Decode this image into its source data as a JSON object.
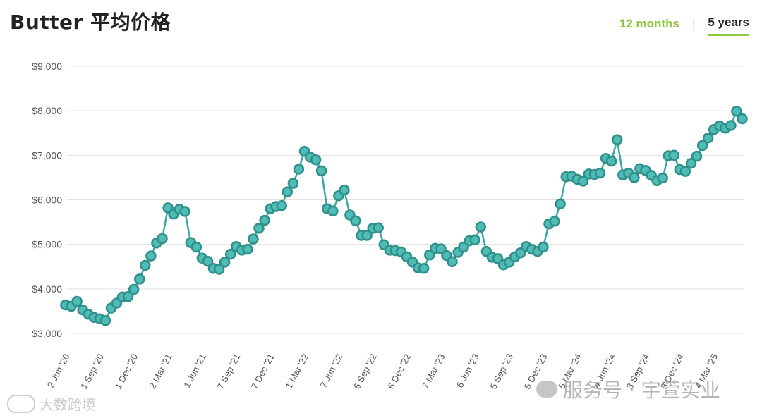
{
  "header": {
    "title": "Butter 平均价格",
    "tab_12_months": "12 months",
    "tab_5_years": "5 years"
  },
  "colors": {
    "line": "#3aa9a4",
    "marker": "#4fbcb5",
    "marker_stroke": "#2f8f8a",
    "accent": "#8dc63f",
    "grid": "#e3e3e3"
  },
  "watermarks": {
    "left": "大数跨境",
    "right": "服务号 · 宇萱实业"
  },
  "chart_data": {
    "type": "line",
    "title": "Butter 平均价格",
    "ylabel": "",
    "xlabel": "",
    "ylim": [
      3000,
      9000
    ],
    "y_ticks": [
      {
        "value": 3000,
        "label": "$3,000"
      },
      {
        "value": 4000,
        "label": "$4,000"
      },
      {
        "value": 5000,
        "label": "$5,000"
      },
      {
        "value": 6000,
        "label": "$6,000"
      },
      {
        "value": 7000,
        "label": "$7,000"
      },
      {
        "value": 8000,
        "label": "$8,000"
      },
      {
        "value": 9000,
        "label": "$9,000"
      }
    ],
    "x_ticks": [
      {
        "index": 0,
        "label": "2 Jun '20"
      },
      {
        "index": 6,
        "label": "1 Sep '20"
      },
      {
        "index": 12,
        "label": "1 Dec '20"
      },
      {
        "index": 18,
        "label": "2 Mar '21"
      },
      {
        "index": 24,
        "label": "1 Jun '21"
      },
      {
        "index": 30,
        "label": "7 Sep '21"
      },
      {
        "index": 36,
        "label": "7 Dec '21"
      },
      {
        "index": 42,
        "label": "1 Mar '22"
      },
      {
        "index": 48,
        "label": "7 Jun '22"
      },
      {
        "index": 54,
        "label": "6 Sep '22"
      },
      {
        "index": 60,
        "label": "6 Dec '22"
      },
      {
        "index": 66,
        "label": "7 Mar '23"
      },
      {
        "index": 72,
        "label": "6 Jun '23"
      },
      {
        "index": 78,
        "label": "5 Sep '23"
      },
      {
        "index": 84,
        "label": "5 Dec '23"
      },
      {
        "index": 90,
        "label": "5 Mar '24"
      },
      {
        "index": 96,
        "label": "4 Jun '24"
      },
      {
        "index": 102,
        "label": "3 Sep '24"
      },
      {
        "index": 108,
        "label": "3 Dec '24"
      },
      {
        "index": 114,
        "label": "4 Mar '25"
      }
    ],
    "series": [
      {
        "values": [
          3640,
          3610,
          3720,
          3530,
          3430,
          3360,
          3330,
          3290,
          3570,
          3680,
          3820,
          3830,
          3990,
          4220,
          4530,
          4740,
          5030,
          5130,
          5820,
          5680,
          5790,
          5740,
          5040,
          4940,
          4690,
          4620,
          4460,
          4440,
          4600,
          4780,
          4950,
          4870,
          4890,
          5120,
          5360,
          5540,
          5800,
          5850,
          5870,
          6180,
          6370,
          6690,
          7090,
          6960,
          6900,
          6650,
          5800,
          5750,
          6090,
          6220,
          5660,
          5530,
          5200,
          5200,
          5360,
          5370,
          4990,
          4870,
          4860,
          4830,
          4720,
          4600,
          4470,
          4460,
          4760,
          4910,
          4900,
          4750,
          4610,
          4820,
          4940,
          5080,
          5100,
          5390,
          4840,
          4710,
          4680,
          4540,
          4600,
          4720,
          4810,
          4950,
          4890,
          4840,
          4940,
          5460,
          5520,
          5910,
          6520,
          6530,
          6460,
          6420,
          6580,
          6570,
          6600,
          6930,
          6870,
          7350,
          6560,
          6600,
          6500,
          6700,
          6660,
          6550,
          6430,
          6490,
          6990,
          7000,
          6680,
          6640,
          6820,
          6980,
          7220,
          7390,
          7580,
          7660,
          7610,
          7670,
          7990,
          7820
        ]
      }
    ]
  }
}
